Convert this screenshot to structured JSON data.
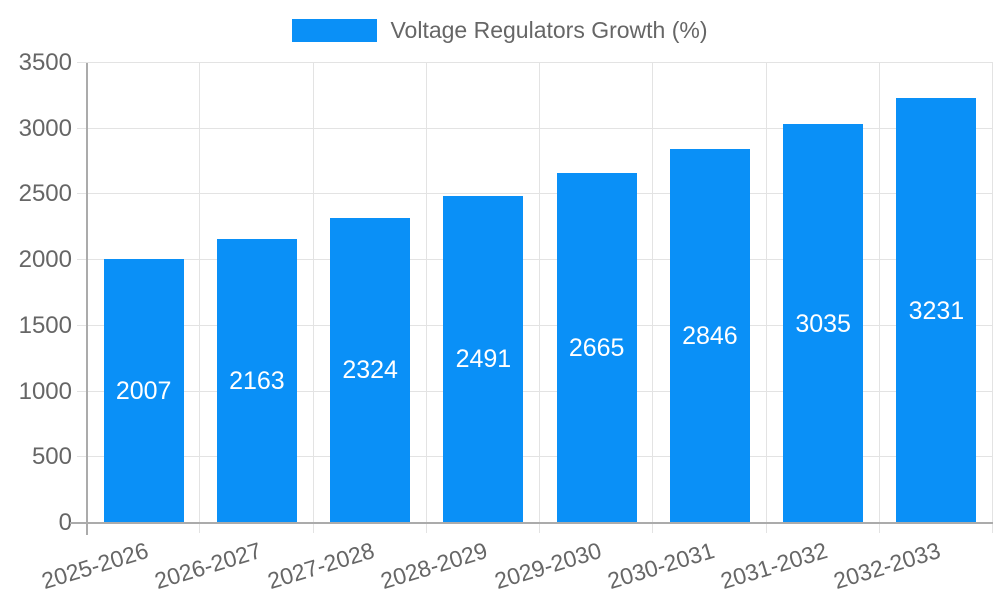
{
  "legend": {
    "label": "Voltage Regulators Growth (%)"
  },
  "colors": {
    "bar": "#0A90F7",
    "grid": "#E3E3E3",
    "axis": "#ABABAB",
    "tick_label": "#666666",
    "legend_label": "#666666",
    "value_label": "#FFFFFF",
    "background": "#FFFFFF"
  },
  "chart_data": {
    "type": "bar",
    "title": "",
    "legend_entries": [
      "Voltage Regulators Growth (%)"
    ],
    "legend_position": "top-center",
    "categories": [
      "2025-2026",
      "2026-2027",
      "2027-2028",
      "2028-2029",
      "2029-2030",
      "2030-2031",
      "2031-2032",
      "2032-2033"
    ],
    "values": [
      2007,
      2163,
      2324,
      2491,
      2665,
      2846,
      3035,
      3231
    ],
    "xlabel": "",
    "ylabel": "",
    "ylim": [
      0,
      3500
    ],
    "yticks": [
      0,
      500,
      1000,
      1500,
      2000,
      2500,
      3000,
      3500
    ],
    "grid": true,
    "value_label_position": "inside-center",
    "x_tick_rotation_deg": -17
  }
}
